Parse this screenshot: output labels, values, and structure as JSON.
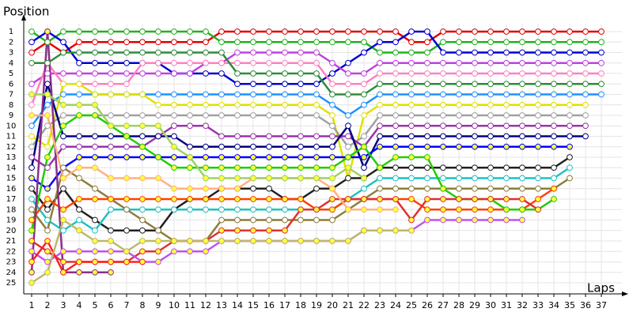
{
  "chart_data": {
    "type": "line",
    "title": "Position",
    "x_label": "Laps",
    "x": [
      1,
      2,
      3,
      4,
      5,
      6,
      7,
      8,
      9,
      10,
      11,
      12,
      13,
      14,
      15,
      16,
      17,
      18,
      19,
      20,
      21,
      22,
      23,
      24,
      25,
      26,
      27,
      28,
      29,
      30,
      31,
      32,
      33,
      34,
      35,
      36,
      37
    ],
    "xlim": [
      0.5,
      38.5
    ],
    "xticks": [
      1,
      2,
      3,
      4,
      5,
      6,
      7,
      8,
      9,
      10,
      11,
      12,
      13,
      14,
      15,
      16,
      17,
      18,
      19,
      20,
      21,
      22,
      23,
      24,
      25,
      26,
      27,
      28,
      29,
      30,
      31,
      32,
      33,
      34,
      35,
      36,
      37
    ],
    "ylim": [
      0,
      26
    ],
    "y_inverted": true,
    "yticks": [
      1,
      2,
      3,
      4,
      5,
      6,
      7,
      8,
      9,
      10,
      11,
      12,
      13,
      14,
      15,
      16,
      17,
      18,
      19,
      20,
      21,
      22,
      23,
      24,
      25
    ],
    "grid": true,
    "series": [
      {
        "color": "#e00000",
        "marker_fill": "#ffffff",
        "values": [
          3,
          2,
          3,
          2,
          2,
          2,
          2,
          2,
          2,
          2,
          2,
          2,
          1,
          1,
          1,
          1,
          1,
          1,
          1,
          1,
          1,
          1,
          1,
          1,
          2,
          2,
          1,
          1,
          1,
          1,
          1,
          1,
          1,
          1,
          1,
          1,
          1
        ]
      },
      {
        "color": "#22b022",
        "marker_fill": "#ffffff",
        "values": [
          1,
          2,
          1,
          1,
          1,
          1,
          1,
          1,
          1,
          1,
          1,
          1,
          2,
          2,
          2,
          2,
          2,
          2,
          2,
          2,
          2,
          2,
          3,
          3,
          3,
          3,
          2,
          2,
          2,
          2,
          2,
          2,
          2,
          2,
          2,
          2,
          2
        ]
      },
      {
        "color": "#0000cc",
        "marker_fill": "#ffffff",
        "values": [
          2,
          1,
          2,
          4,
          4,
          4,
          4,
          4,
          4,
          5,
          5,
          5,
          5,
          6,
          6,
          6,
          6,
          6,
          6,
          5,
          4,
          3,
          2,
          2,
          1,
          1,
          3,
          3,
          3,
          3,
          3,
          3,
          3,
          3,
          3,
          3,
          3
        ]
      },
      {
        "color": "#c040e0",
        "marker_fill": "#ffffff",
        "values": [
          6,
          5,
          5,
          5,
          5,
          5,
          5,
          5,
          5,
          5,
          5,
          4,
          4,
          3,
          3,
          3,
          3,
          3,
          3,
          4,
          5,
          5,
          4,
          4,
          4,
          4,
          4,
          4,
          4,
          4,
          4,
          4,
          4,
          4,
          4,
          4,
          4
        ]
      },
      {
        "color": "#ff80c0",
        "marker_fill": "#ffffff",
        "values": [
          8,
          4,
          6,
          6,
          6,
          6,
          6,
          4,
          4,
          4,
          4,
          4,
          4,
          4,
          4,
          4,
          4,
          4,
          4,
          6,
          6,
          6,
          5,
          5,
          5,
          5,
          5,
          5,
          5,
          5,
          5,
          5,
          5,
          5,
          5,
          5,
          5
        ]
      },
      {
        "color": "#2e8b3a",
        "marker_fill": "#ffffff",
        "values": [
          4,
          4,
          3,
          3,
          3,
          3,
          3,
          3,
          3,
          3,
          3,
          3,
          3,
          5,
          5,
          5,
          5,
          5,
          5,
          7,
          7,
          7,
          6,
          6,
          6,
          6,
          6,
          6,
          6,
          6,
          6,
          6,
          6,
          6,
          6,
          6,
          6
        ]
      },
      {
        "color": "#1e90ff",
        "marker_fill": "#ffffff",
        "values": [
          10,
          8,
          7,
          7,
          7,
          7,
          7,
          7,
          7,
          7,
          7,
          7,
          7,
          7,
          7,
          7,
          7,
          7,
          7,
          8,
          9,
          8,
          7,
          7,
          7,
          7,
          7,
          7,
          7,
          7,
          7,
          7,
          7,
          7,
          7,
          7,
          7
        ]
      },
      {
        "color": "#e0e000",
        "marker_fill": "#ffffff",
        "values": [
          11,
          12,
          6,
          6,
          7,
          7,
          7,
          7,
          8,
          8,
          8,
          8,
          8,
          8,
          8,
          8,
          8,
          8,
          8,
          9,
          15,
          9,
          8,
          8,
          8,
          8,
          8,
          8,
          8,
          8,
          8,
          8,
          8,
          8,
          8,
          8,
          null
        ]
      },
      {
        "color": "#a0a0a0",
        "marker_fill": "#ffffff",
        "values": [
          12,
          10,
          9,
          9,
          9,
          9,
          9,
          9,
          9,
          9,
          9,
          9,
          9,
          9,
          9,
          9,
          9,
          9,
          9,
          10,
          12,
          11,
          9,
          9,
          9,
          9,
          9,
          9,
          9,
          9,
          9,
          9,
          9,
          9,
          9,
          9,
          null
        ]
      },
      {
        "color": "#9933aa",
        "marker_fill": "#ffffff",
        "values": [
          13,
          14,
          12,
          12,
          12,
          12,
          12,
          12,
          11,
          10,
          10,
          10,
          11,
          11,
          11,
          11,
          11,
          11,
          11,
          11,
          11,
          12,
          10,
          10,
          10,
          10,
          10,
          10,
          10,
          10,
          10,
          10,
          10,
          10,
          10,
          10,
          null
        ]
      },
      {
        "color": "#000080",
        "marker_fill": "#ffffff",
        "values": [
          14,
          6,
          11,
          11,
          11,
          11,
          11,
          11,
          11,
          11,
          12,
          12,
          12,
          12,
          12,
          12,
          12,
          12,
          12,
          12,
          10,
          14,
          11,
          11,
          11,
          11,
          11,
          11,
          11,
          11,
          11,
          11,
          11,
          11,
          11,
          11,
          null
        ]
      },
      {
        "color": "#0000ff",
        "marker_fill": "#ffff40",
        "values": [
          15,
          16,
          14,
          13,
          13,
          13,
          13,
          13,
          13,
          13,
          13,
          13,
          13,
          13,
          13,
          13,
          13,
          13,
          13,
          13,
          13,
          13,
          12,
          12,
          12,
          12,
          12,
          12,
          12,
          12,
          12,
          12,
          12,
          12,
          12,
          null,
          null
        ]
      },
      {
        "color": "#202020",
        "marker_fill": "#ffffff",
        "values": [
          16,
          18,
          16,
          18,
          19,
          20,
          20,
          20,
          20,
          18,
          17,
          17,
          16,
          16,
          16,
          16,
          17,
          17,
          16,
          16,
          15,
          15,
          14,
          14,
          14,
          14,
          14,
          14,
          14,
          14,
          14,
          14,
          14,
          14,
          13,
          null,
          null
        ]
      },
      {
        "color": "#20c0c0",
        "marker_fill": "#ffffff",
        "values": [
          17,
          19,
          20,
          19,
          20,
          18,
          18,
          18,
          18,
          18,
          18,
          18,
          18,
          18,
          18,
          18,
          18,
          18,
          18,
          18,
          17,
          16,
          15,
          15,
          15,
          15,
          15,
          15,
          15,
          15,
          15,
          15,
          15,
          15,
          14,
          null,
          null
        ]
      },
      {
        "color": "#8b7d3a",
        "marker_fill": "#ffffff",
        "values": [
          18,
          20,
          14,
          15,
          16,
          17,
          18,
          19,
          20,
          21,
          21,
          21,
          19,
          19,
          19,
          19,
          19,
          19,
          19,
          19,
          18,
          17,
          16,
          16,
          16,
          16,
          16,
          16,
          16,
          16,
          16,
          16,
          16,
          16,
          15,
          null,
          null
        ]
      },
      {
        "color": "#ff4000",
        "marker_fill": "#ffff40",
        "values": [
          19,
          17,
          18,
          17,
          17,
          17,
          17,
          17,
          17,
          17,
          17,
          17,
          17,
          17,
          17,
          17,
          17,
          17,
          18,
          18,
          17,
          17,
          17,
          17,
          17,
          18,
          18,
          18,
          18,
          18,
          18,
          18,
          17,
          16,
          null,
          null,
          null
        ]
      },
      {
        "color": "#22cc00",
        "marker_fill": "#ffff40",
        "values": [
          20,
          13,
          10,
          9,
          9,
          10,
          11,
          12,
          13,
          14,
          14,
          14,
          14,
          14,
          14,
          14,
          14,
          14,
          14,
          14,
          13,
          12,
          14,
          13,
          13,
          13,
          16,
          17,
          17,
          17,
          18,
          18,
          18,
          17,
          null,
          null,
          null
        ]
      },
      {
        "color": "#e03030",
        "marker_fill": "#ffff40",
        "values": [
          21,
          22,
          23,
          23,
          23,
          23,
          23,
          22,
          22,
          21,
          21,
          21,
          20,
          20,
          20,
          20,
          20,
          18,
          18,
          17,
          17,
          17,
          17,
          17,
          19,
          17,
          17,
          17,
          17,
          17,
          17,
          17,
          18,
          null,
          null,
          null,
          null
        ]
      },
      {
        "color": "#c050f0",
        "marker_fill": "#ffff40",
        "values": [
          22,
          23,
          22,
          22,
          22,
          22,
          22,
          23,
          23,
          22,
          22,
          22,
          21,
          21,
          21,
          21,
          21,
          21,
          21,
          21,
          21,
          20,
          20,
          20,
          20,
          19,
          19,
          19,
          19,
          19,
          19,
          19,
          null,
          null,
          null,
          null,
          null
        ]
      },
      {
        "color": "#8b2f8b",
        "marker_fill": "#ffff40",
        "values": [
          24,
          1,
          24,
          24,
          24,
          24,
          null,
          null,
          null,
          null,
          null,
          null,
          null,
          null,
          null,
          null,
          null,
          null,
          null,
          null,
          null,
          null,
          null,
          null,
          null,
          null,
          null,
          null,
          null,
          null,
          null,
          null,
          null,
          null,
          null,
          null,
          null
        ]
      },
      {
        "color": "#ff2020",
        "marker_fill": "#ffff40",
        "values": [
          23,
          21,
          24,
          23,
          23,
          23,
          23,
          23,
          null,
          null,
          null,
          null,
          null,
          null,
          null,
          null,
          null,
          null,
          null,
          null,
          null,
          null,
          null,
          null,
          null,
          null,
          null,
          null,
          null,
          null,
          null,
          null,
          null,
          null,
          null,
          null,
          null
        ]
      },
      {
        "color": "#bdb76b",
        "marker_fill": "#ffff40",
        "values": [
          25,
          24,
          19,
          20,
          21,
          21,
          22,
          21,
          21,
          21,
          21,
          21,
          21,
          21,
          21,
          21,
          21,
          21,
          21,
          21,
          21,
          20,
          20,
          20,
          20,
          null,
          null,
          null,
          null,
          null,
          null,
          null,
          null,
          null,
          null,
          null,
          null
        ]
      },
      {
        "color": "#ffb080",
        "marker_fill": "#ffff40",
        "values": [
          9,
          9,
          15,
          14,
          14,
          15,
          15,
          15,
          15,
          16,
          16,
          16,
          16,
          16,
          15,
          15,
          15,
          15,
          15,
          16,
          18,
          18,
          18,
          18,
          null,
          null,
          null,
          null,
          null,
          null,
          null,
          null,
          null,
          null,
          null,
          null,
          null
        ]
      },
      {
        "color": "#a0d060",
        "marker_fill": "#ffff40",
        "values": [
          7,
          7,
          8,
          8,
          8,
          10,
          10,
          10,
          10,
          12,
          13,
          15,
          15,
          15,
          15,
          15,
          15,
          15,
          15,
          15,
          14,
          15,
          null,
          null,
          null,
          null,
          null,
          null,
          null,
          null,
          null,
          null,
          null,
          null,
          null,
          null,
          null
        ]
      }
    ]
  }
}
